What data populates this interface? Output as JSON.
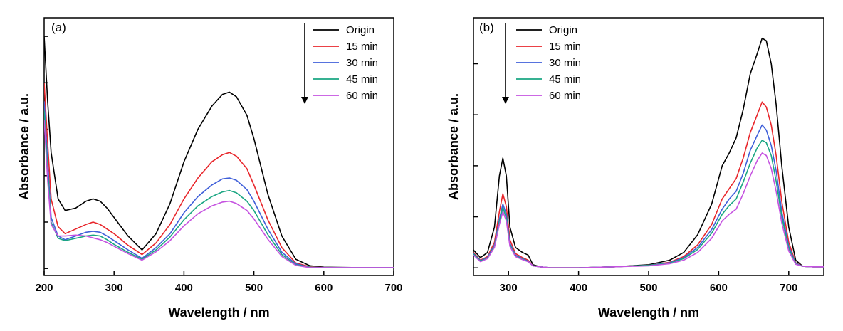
{
  "chart_data": [
    {
      "type": "line",
      "panel_label": "(a)",
      "xlabel": "Wavelength / nm",
      "ylabel": "Absorbance / a.u.",
      "xlim": [
        200,
        700
      ],
      "x_ticks": [
        "200",
        "300",
        "400",
        "500",
        "600",
        "700"
      ],
      "y_tick_labels_shown": false,
      "legend": {
        "placement": "top-right",
        "trend_arrow": "down"
      },
      "series": [
        {
          "name": "Origin",
          "color": "#000000",
          "x": [
            200,
            205,
            210,
            220,
            230,
            245,
            260,
            270,
            280,
            290,
            300,
            320,
            340,
            360,
            380,
            400,
            420,
            440,
            455,
            465,
            475,
            490,
            500,
            520,
            540,
            560,
            580,
            600,
            650,
            700
          ],
          "y": [
            5.0,
            3.6,
            2.5,
            1.5,
            1.25,
            1.3,
            1.45,
            1.5,
            1.45,
            1.3,
            1.1,
            0.7,
            0.4,
            0.75,
            1.4,
            2.3,
            3.0,
            3.5,
            3.75,
            3.8,
            3.7,
            3.3,
            2.8,
            1.6,
            0.7,
            0.2,
            0.06,
            0.03,
            0.02,
            0.02
          ]
        },
        {
          "name": "15 min",
          "color": "#e8262b",
          "x": [
            200,
            205,
            210,
            220,
            230,
            245,
            260,
            270,
            280,
            290,
            300,
            320,
            340,
            360,
            380,
            400,
            420,
            440,
            455,
            465,
            475,
            490,
            500,
            520,
            540,
            560,
            580,
            600,
            650,
            700
          ],
          "y": [
            4.0,
            2.7,
            1.5,
            0.9,
            0.75,
            0.85,
            0.95,
            1.0,
            0.95,
            0.85,
            0.75,
            0.5,
            0.3,
            0.55,
            0.95,
            1.5,
            1.95,
            2.3,
            2.45,
            2.5,
            2.42,
            2.15,
            1.8,
            1.05,
            0.45,
            0.12,
            0.04,
            0.02,
            0.02,
            0.02
          ]
        },
        {
          "name": "30 min",
          "color": "#3f5fd9",
          "x": [
            200,
            205,
            210,
            220,
            230,
            245,
            260,
            270,
            280,
            290,
            300,
            320,
            340,
            360,
            380,
            400,
            420,
            440,
            455,
            465,
            475,
            490,
            500,
            520,
            540,
            560,
            580,
            600,
            650,
            700
          ],
          "y": [
            3.6,
            2.3,
            1.1,
            0.7,
            0.62,
            0.7,
            0.78,
            0.8,
            0.78,
            0.7,
            0.6,
            0.4,
            0.22,
            0.45,
            0.75,
            1.2,
            1.55,
            1.8,
            1.93,
            1.95,
            1.9,
            1.7,
            1.45,
            0.85,
            0.35,
            0.1,
            0.03,
            0.02,
            0.02,
            0.02
          ]
        },
        {
          "name": "45 min",
          "color": "#1aa682",
          "x": [
            200,
            205,
            210,
            220,
            230,
            245,
            260,
            270,
            280,
            290,
            300,
            320,
            340,
            360,
            380,
            400,
            420,
            440,
            455,
            465,
            475,
            490,
            500,
            520,
            540,
            560,
            580,
            600,
            650,
            700
          ],
          "y": [
            3.4,
            2.1,
            1.0,
            0.65,
            0.6,
            0.65,
            0.7,
            0.72,
            0.7,
            0.62,
            0.52,
            0.35,
            0.2,
            0.4,
            0.68,
            1.05,
            1.35,
            1.55,
            1.65,
            1.68,
            1.63,
            1.45,
            1.25,
            0.73,
            0.3,
            0.08,
            0.03,
            0.02,
            0.02,
            0.02
          ]
        },
        {
          "name": "60 min",
          "color": "#c552e0",
          "x": [
            200,
            205,
            210,
            220,
            230,
            245,
            260,
            270,
            280,
            290,
            300,
            320,
            340,
            360,
            380,
            400,
            420,
            440,
            455,
            465,
            475,
            490,
            500,
            520,
            540,
            560,
            580,
            600,
            650,
            700
          ],
          "y": [
            3.2,
            1.9,
            0.95,
            0.7,
            0.7,
            0.72,
            0.7,
            0.66,
            0.62,
            0.56,
            0.48,
            0.32,
            0.18,
            0.36,
            0.6,
            0.92,
            1.18,
            1.35,
            1.43,
            1.45,
            1.4,
            1.25,
            1.07,
            0.63,
            0.26,
            0.07,
            0.02,
            0.02,
            0.02,
            0.02
          ]
        }
      ]
    },
    {
      "type": "line",
      "panel_label": "(b)",
      "xlabel": "Wavelength / nm",
      "ylabel": "Absorbance / a.u.",
      "xlim": [
        250,
        750
      ],
      "x_ticks": [
        "300",
        "400",
        "500",
        "600",
        "700"
      ],
      "y_tick_labels_shown": false,
      "legend": {
        "placement": "top-left",
        "trend_arrow": "down"
      },
      "series": [
        {
          "name": "Origin",
          "color": "#000000",
          "x": [
            250,
            260,
            270,
            280,
            287,
            292,
            297,
            302,
            310,
            320,
            328,
            335,
            345,
            360,
            400,
            450,
            500,
            530,
            550,
            570,
            590,
            605,
            615,
            625,
            635,
            645,
            655,
            662,
            668,
            675,
            682,
            690,
            700,
            710,
            720,
            735,
            750
          ],
          "y": [
            0.35,
            0.2,
            0.3,
            0.8,
            1.8,
            2.15,
            1.8,
            0.8,
            0.4,
            0.3,
            0.25,
            0.06,
            0.02,
            0.0,
            0.0,
            0.02,
            0.06,
            0.15,
            0.3,
            0.65,
            1.25,
            2.0,
            2.25,
            2.55,
            3.1,
            3.8,
            4.2,
            4.5,
            4.45,
            4.0,
            3.2,
            2.0,
            0.8,
            0.15,
            0.03,
            0.02,
            0.02
          ]
        },
        {
          "name": "15 min",
          "color": "#e8262b",
          "x": [
            250,
            260,
            270,
            280,
            287,
            292,
            297,
            302,
            310,
            320,
            328,
            335,
            345,
            360,
            400,
            450,
            500,
            530,
            550,
            570,
            590,
            605,
            615,
            625,
            635,
            645,
            655,
            662,
            668,
            675,
            682,
            690,
            700,
            710,
            720,
            735,
            750
          ],
          "y": [
            0.3,
            0.15,
            0.22,
            0.5,
            1.1,
            1.45,
            1.2,
            0.55,
            0.28,
            0.2,
            0.15,
            0.04,
            0.02,
            0.0,
            0.0,
            0.02,
            0.05,
            0.11,
            0.22,
            0.45,
            0.85,
            1.35,
            1.55,
            1.75,
            2.15,
            2.65,
            3.0,
            3.25,
            3.15,
            2.8,
            2.2,
            1.3,
            0.5,
            0.1,
            0.03,
            0.02,
            0.02
          ]
        },
        {
          "name": "30 min",
          "color": "#3f5fd9",
          "x": [
            250,
            260,
            270,
            280,
            287,
            292,
            297,
            302,
            310,
            320,
            328,
            335,
            345,
            360,
            400,
            450,
            500,
            530,
            550,
            570,
            590,
            605,
            615,
            625,
            635,
            645,
            655,
            662,
            668,
            675,
            682,
            690,
            700,
            710,
            720,
            735,
            750
          ],
          "y": [
            0.28,
            0.14,
            0.2,
            0.45,
            0.95,
            1.25,
            1.05,
            0.48,
            0.25,
            0.18,
            0.13,
            0.04,
            0.02,
            0.0,
            0.0,
            0.02,
            0.05,
            0.1,
            0.2,
            0.4,
            0.75,
            1.15,
            1.35,
            1.5,
            1.85,
            2.3,
            2.6,
            2.8,
            2.7,
            2.4,
            1.9,
            1.1,
            0.42,
            0.09,
            0.03,
            0.02,
            0.02
          ]
        },
        {
          "name": "45 min",
          "color": "#1aa682",
          "x": [
            250,
            260,
            270,
            280,
            287,
            292,
            297,
            302,
            310,
            320,
            328,
            335,
            345,
            360,
            400,
            450,
            500,
            530,
            550,
            570,
            590,
            605,
            615,
            625,
            635,
            645,
            655,
            662,
            668,
            675,
            682,
            690,
            700,
            710,
            720,
            735,
            750
          ],
          "y": [
            0.27,
            0.13,
            0.19,
            0.42,
            0.9,
            1.18,
            0.98,
            0.45,
            0.23,
            0.17,
            0.12,
            0.04,
            0.02,
            0.0,
            0.0,
            0.02,
            0.05,
            0.09,
            0.18,
            0.36,
            0.68,
            1.05,
            1.22,
            1.35,
            1.68,
            2.05,
            2.35,
            2.5,
            2.45,
            2.2,
            1.7,
            1.0,
            0.38,
            0.08,
            0.03,
            0.02,
            0.02
          ]
        },
        {
          "name": "60 min",
          "color": "#c552e0",
          "x": [
            250,
            260,
            270,
            280,
            287,
            292,
            297,
            302,
            310,
            320,
            328,
            335,
            345,
            360,
            400,
            450,
            500,
            530,
            550,
            570,
            590,
            605,
            615,
            625,
            635,
            645,
            655,
            662,
            668,
            675,
            682,
            690,
            700,
            710,
            720,
            735,
            750
          ],
          "y": [
            0.25,
            0.12,
            0.18,
            0.4,
            0.85,
            1.1,
            0.92,
            0.42,
            0.22,
            0.16,
            0.12,
            0.04,
            0.02,
            0.0,
            0.0,
            0.02,
            0.04,
            0.08,
            0.15,
            0.3,
            0.58,
            0.92,
            1.05,
            1.15,
            1.45,
            1.8,
            2.1,
            2.25,
            2.2,
            1.95,
            1.5,
            0.88,
            0.33,
            0.07,
            0.03,
            0.02,
            0.02
          ]
        }
      ]
    }
  ]
}
